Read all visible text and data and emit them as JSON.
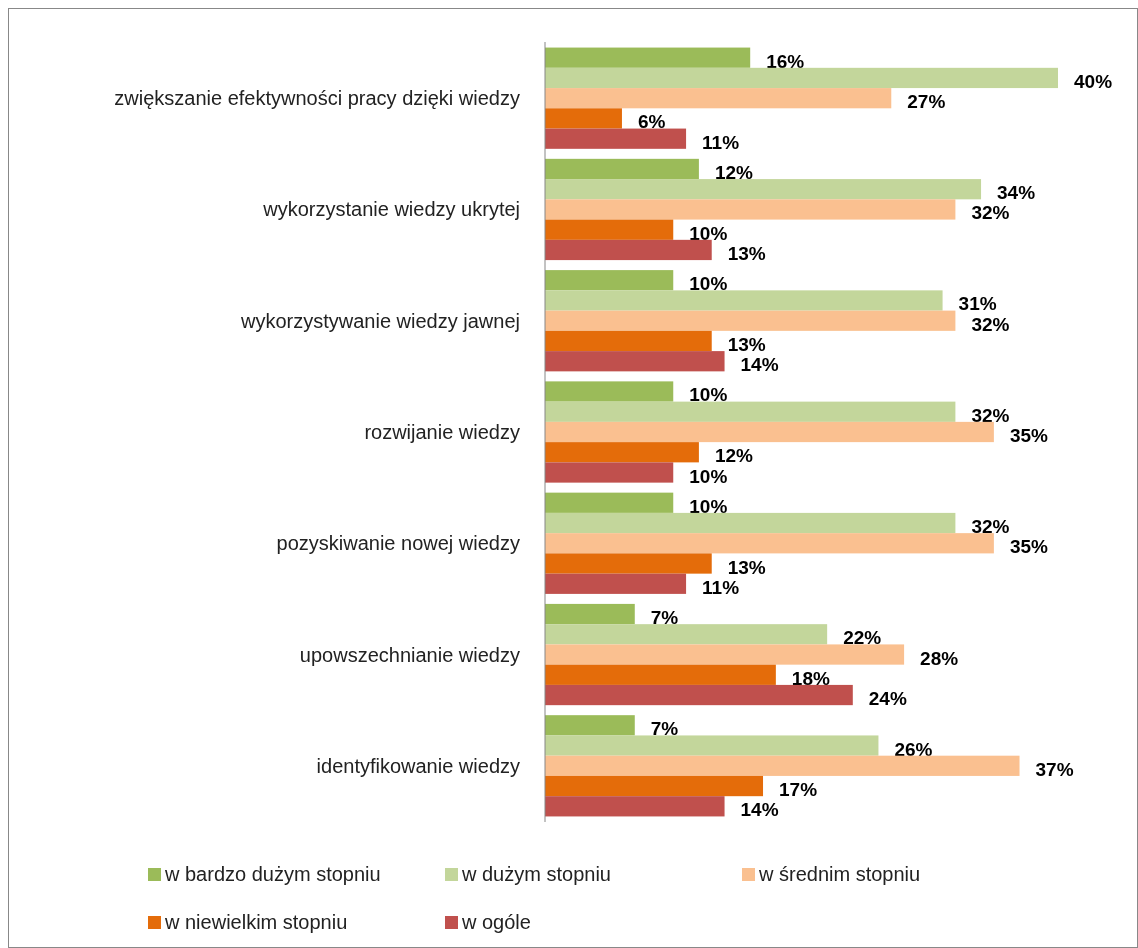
{
  "chart_data": {
    "type": "bar",
    "orientation": "horizontal",
    "tick_labels": "y",
    "legend": "bottom",
    "categories": [
      "zwiększanie efektywności pracy dzięki wiedzy",
      "wykorzystanie wiedzy ukrytej",
      "wykorzystywanie wiedzy jawnej",
      "rozwijanie wiedzy",
      "pozyskiwanie nowej wiedzy",
      "upowszechnianie wiedzy",
      "identyfikowanie wiedzy"
    ],
    "series": [
      {
        "name": "w bardzo dużym stopniu",
        "color": "#9bbb59",
        "values": [
          16,
          12,
          10,
          10,
          10,
          7,
          7
        ],
        "value_labels": [
          "16%",
          "12%",
          "10%",
          "10%",
          "10%",
          "7%",
          "7%"
        ]
      },
      {
        "name": "w dużym stopniu",
        "color": "#c3d69b",
        "values": [
          40,
          34,
          31,
          32,
          32,
          22,
          26
        ],
        "value_labels": [
          "40%",
          "34%",
          "31%",
          "32%",
          "32%",
          "22%",
          "26%"
        ]
      },
      {
        "name": "w średnim stopniu",
        "color": "#fac090",
        "values": [
          27,
          32,
          32,
          35,
          35,
          28,
          37
        ],
        "value_labels": [
          "27%",
          "32%",
          "32%",
          "35%",
          "35%",
          "28%",
          "37%"
        ]
      },
      {
        "name": "w niewielkim stopniu",
        "color": "#e46c0a",
        "values": [
          6,
          10,
          13,
          12,
          13,
          18,
          17
        ],
        "value_labels": [
          "6%",
          "10%",
          "13%",
          "12%",
          "13%",
          "18%",
          "17%"
        ]
      },
      {
        "name": "w ogóle",
        "color": "#c0504d",
        "values": [
          11,
          13,
          14,
          10,
          11,
          24,
          14
        ],
        "value_labels": [
          "11%",
          "13%",
          "14%",
          "10%",
          "11%",
          "24%",
          "14%"
        ]
      }
    ]
  }
}
